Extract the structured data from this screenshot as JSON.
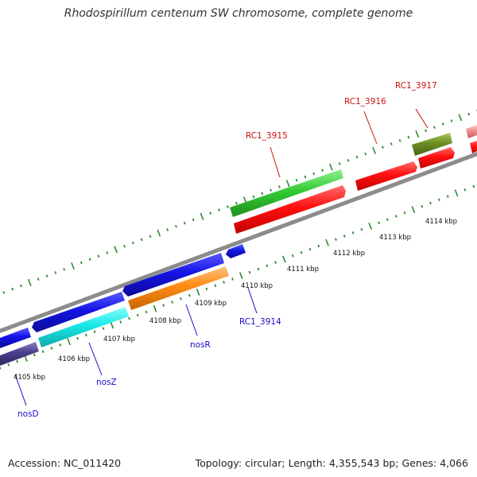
{
  "title": "Rhodospirillum centenum SW chromosome, complete genome",
  "footer": {
    "accession": "Accession: NC_011420",
    "summary": "Topology: circular; Length: 4,355,543 bp; Genes: 4,066"
  },
  "scale_labels": [
    "4105 kbp",
    "4106 kbp",
    "4107 kbp",
    "4108 kbp",
    "4109 kbp",
    "4110 kbp",
    "4111 kbp",
    "4112 kbp",
    "4113 kbp",
    "4114 kbp"
  ],
  "genes": [
    {
      "label": "nosD",
      "color": "#1a0dcc",
      "strand": "reverse"
    },
    {
      "label": "nosZ",
      "color": "#1a0dcc",
      "strand": "reverse"
    },
    {
      "label": "nosR",
      "color": "#1a0dcc",
      "strand": "reverse"
    },
    {
      "label": "RC1_3914",
      "color": "#1a0dcc",
      "strand": "reverse"
    },
    {
      "label": "RC1_3915",
      "color": "#cc1111",
      "strand": "forward"
    },
    {
      "label": "RC1_3916",
      "color": "#cc1111",
      "strand": "forward"
    },
    {
      "label": "RC1_3917",
      "color": "#cc1111",
      "strand": "forward"
    }
  ],
  "colors": {
    "backbone": "#8c8c8c",
    "ticks": "#2e8b2e",
    "cds_forward": "#ff1010",
    "cds_reverse": "#1414e6",
    "rrna_cyan": "#19e8e8",
    "orange": "#ff8c14",
    "green": "#33cc33",
    "olive": "#6b8e23",
    "navy": "#4a3f8c",
    "pink": "#f08c8c"
  }
}
